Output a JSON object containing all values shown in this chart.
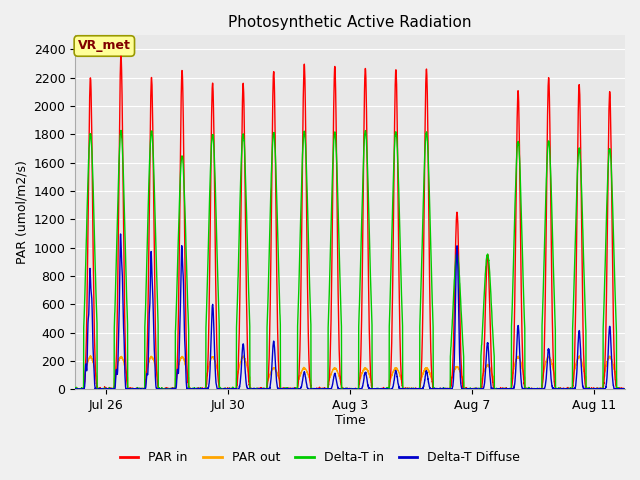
{
  "title": "Photosynthetic Active Radiation",
  "xlabel": "Time",
  "ylabel": "PAR (umol/m2/s)",
  "ylim": [
    0,
    2500
  ],
  "yticks": [
    0,
    200,
    400,
    600,
    800,
    1000,
    1200,
    1400,
    1600,
    1800,
    2000,
    2200,
    2400
  ],
  "fig_bg_color": "#f0f0f0",
  "plot_bg_color": "#e8e8e8",
  "grid_color": "#ffffff",
  "colors": {
    "PAR in": "#ff0000",
    "PAR out": "#ffa500",
    "Delta-T in": "#00cc00",
    "Delta-T Diffuse": "#0000cc"
  },
  "annotation_text": "VR_met",
  "annotation_color": "#800000",
  "annotation_bg": "#ffff99",
  "annotation_edge": "#999900",
  "x_tick_labels": [
    "Jul 26",
    "Jul 30",
    "Aug 3",
    "Aug 7",
    "Aug 11"
  ],
  "x_tick_positions": [
    1,
    5,
    9,
    13,
    17
  ],
  "n_days": 18,
  "par_in_peaks": [
    2200,
    2350,
    2200,
    2250,
    2160,
    2150,
    2250,
    2290,
    2280,
    2270,
    2260,
    2260,
    1250,
    950,
    2100,
    2200,
    2150,
    2100
  ],
  "par_out_peaks": [
    230,
    230,
    230,
    230,
    230,
    230,
    150,
    150,
    150,
    150,
    150,
    150,
    160,
    170,
    230,
    230,
    230,
    230
  ],
  "delta_t_in_peaks": [
    1800,
    1820,
    1820,
    1650,
    1800,
    1800,
    1810,
    1820,
    1810,
    1820,
    1820,
    1810,
    960,
    950,
    1750,
    1750,
    1700,
    1700
  ],
  "delta_t_diff_peaks": [
    640,
    870,
    750,
    850,
    600,
    320,
    340,
    120,
    110,
    120,
    130,
    125,
    1010,
    330,
    450,
    290,
    415,
    445
  ]
}
